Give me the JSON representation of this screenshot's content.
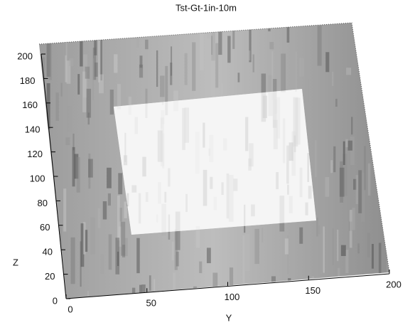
{
  "chart_data": {
    "type": "surface",
    "title": "Tst-Gt-1in-10m",
    "xlabel": "Y",
    "ylabel": "Z",
    "xlim": [
      0,
      200
    ],
    "xticks": [
      0,
      50,
      100,
      150,
      200
    ],
    "ylim": [
      0,
      200
    ],
    "yticks": [
      0,
      20,
      40,
      60,
      80,
      100,
      120,
      140,
      160,
      180,
      200
    ]
  }
}
